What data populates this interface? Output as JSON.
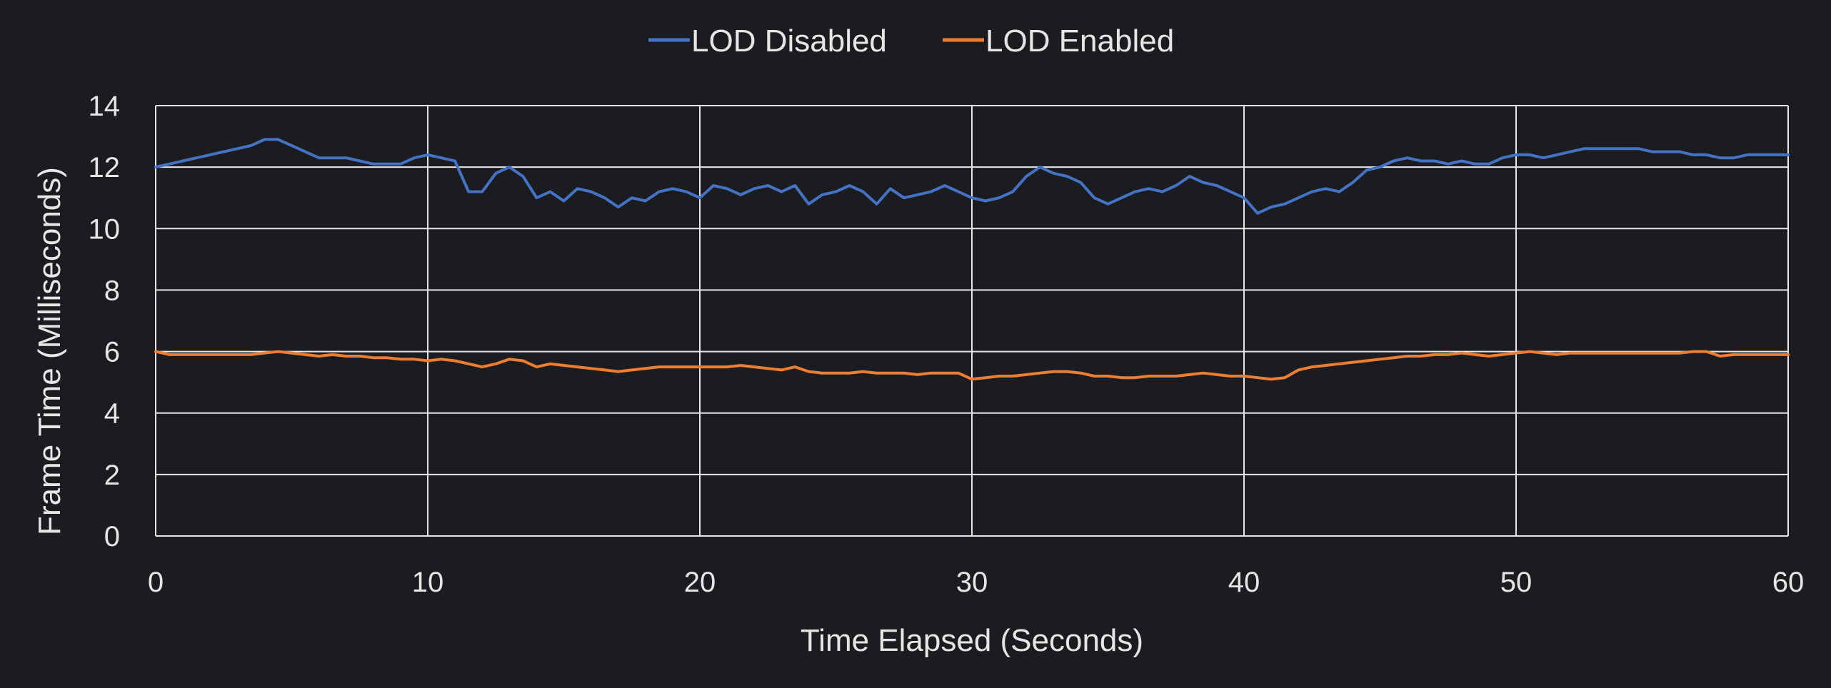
{
  "chart_data": {
    "type": "line",
    "title": "",
    "xlabel": "Time Elapsed (Seconds)",
    "ylabel": "Frame Time (Milliseconds)",
    "xlim": [
      0,
      60
    ],
    "ylim": [
      0,
      14
    ],
    "xticks": [
      0,
      10,
      20,
      30,
      40,
      50,
      60
    ],
    "yticks": [
      0,
      2,
      4,
      6,
      8,
      10,
      12,
      14
    ],
    "grid": true,
    "legend_position": "top-center",
    "background": "#1b1c20",
    "grid_color": "#e6e6e6",
    "series": [
      {
        "name": "LOD Disabled",
        "color": "#4472c4",
        "points": [
          [
            0,
            12.0
          ],
          [
            0.5,
            12.1
          ],
          [
            1,
            12.2
          ],
          [
            1.5,
            12.3
          ],
          [
            2,
            12.4
          ],
          [
            2.5,
            12.5
          ],
          [
            3,
            12.6
          ],
          [
            3.5,
            12.7
          ],
          [
            4,
            12.9
          ],
          [
            4.5,
            12.9
          ],
          [
            5,
            12.7
          ],
          [
            5.5,
            12.5
          ],
          [
            6,
            12.3
          ],
          [
            6.5,
            12.3
          ],
          [
            7,
            12.3
          ],
          [
            7.5,
            12.2
          ],
          [
            8,
            12.1
          ],
          [
            8.5,
            12.1
          ],
          [
            9,
            12.1
          ],
          [
            9.5,
            12.3
          ],
          [
            10,
            12.4
          ],
          [
            10.5,
            12.3
          ],
          [
            11,
            12.2
          ],
          [
            11.5,
            11.2
          ],
          [
            12,
            11.2
          ],
          [
            12.5,
            11.8
          ],
          [
            13,
            12.0
          ],
          [
            13.5,
            11.7
          ],
          [
            14,
            11.0
          ],
          [
            14.5,
            11.2
          ],
          [
            15,
            10.9
          ],
          [
            15.5,
            11.3
          ],
          [
            16,
            11.2
          ],
          [
            16.5,
            11.0
          ],
          [
            17,
            10.7
          ],
          [
            17.5,
            11.0
          ],
          [
            18,
            10.9
          ],
          [
            18.5,
            11.2
          ],
          [
            19,
            11.3
          ],
          [
            19.5,
            11.2
          ],
          [
            20,
            11.0
          ],
          [
            20.5,
            11.4
          ],
          [
            21,
            11.3
          ],
          [
            21.5,
            11.1
          ],
          [
            22,
            11.3
          ],
          [
            22.5,
            11.4
          ],
          [
            23,
            11.2
          ],
          [
            23.5,
            11.4
          ],
          [
            24,
            10.8
          ],
          [
            24.5,
            11.1
          ],
          [
            25,
            11.2
          ],
          [
            25.5,
            11.4
          ],
          [
            26,
            11.2
          ],
          [
            26.5,
            10.8
          ],
          [
            27,
            11.3
          ],
          [
            27.5,
            11.0
          ],
          [
            28,
            11.1
          ],
          [
            28.5,
            11.2
          ],
          [
            29,
            11.4
          ],
          [
            29.5,
            11.2
          ],
          [
            30,
            11.0
          ],
          [
            30.5,
            10.9
          ],
          [
            31,
            11.0
          ],
          [
            31.5,
            11.2
          ],
          [
            32,
            11.7
          ],
          [
            32.5,
            12.0
          ],
          [
            33,
            11.8
          ],
          [
            33.5,
            11.7
          ],
          [
            34,
            11.5
          ],
          [
            34.5,
            11.0
          ],
          [
            35,
            10.8
          ],
          [
            35.5,
            11.0
          ],
          [
            36,
            11.2
          ],
          [
            36.5,
            11.3
          ],
          [
            37,
            11.2
          ],
          [
            37.5,
            11.4
          ],
          [
            38,
            11.7
          ],
          [
            38.5,
            11.5
          ],
          [
            39,
            11.4
          ],
          [
            39.5,
            11.2
          ],
          [
            40,
            11.0
          ],
          [
            40.5,
            10.5
          ],
          [
            41,
            10.7
          ],
          [
            41.5,
            10.8
          ],
          [
            42,
            11.0
          ],
          [
            42.5,
            11.2
          ],
          [
            43,
            11.3
          ],
          [
            43.5,
            11.2
          ],
          [
            44,
            11.5
          ],
          [
            44.5,
            11.9
          ],
          [
            45,
            12.0
          ],
          [
            45.5,
            12.2
          ],
          [
            46,
            12.3
          ],
          [
            46.5,
            12.2
          ],
          [
            47,
            12.2
          ],
          [
            47.5,
            12.1
          ],
          [
            48,
            12.2
          ],
          [
            48.5,
            12.1
          ],
          [
            49,
            12.1
          ],
          [
            49.5,
            12.3
          ],
          [
            50,
            12.4
          ],
          [
            50.5,
            12.4
          ],
          [
            51,
            12.3
          ],
          [
            51.5,
            12.4
          ],
          [
            52,
            12.5
          ],
          [
            52.5,
            12.6
          ],
          [
            53,
            12.6
          ],
          [
            53.5,
            12.6
          ],
          [
            54,
            12.6
          ],
          [
            54.5,
            12.6
          ],
          [
            55,
            12.5
          ],
          [
            55.5,
            12.5
          ],
          [
            56,
            12.5
          ],
          [
            56.5,
            12.4
          ],
          [
            57,
            12.4
          ],
          [
            57.5,
            12.3
          ],
          [
            58,
            12.3
          ],
          [
            58.5,
            12.4
          ],
          [
            59,
            12.4
          ],
          [
            59.5,
            12.4
          ],
          [
            60,
            12.4
          ]
        ]
      },
      {
        "name": "LOD Enabled",
        "color": "#ed7d31",
        "points": [
          [
            0,
            6.0
          ],
          [
            0.5,
            5.9
          ],
          [
            1,
            5.9
          ],
          [
            1.5,
            5.9
          ],
          [
            2,
            5.9
          ],
          [
            2.5,
            5.9
          ],
          [
            3,
            5.9
          ],
          [
            3.5,
            5.9
          ],
          [
            4,
            5.95
          ],
          [
            4.5,
            6.0
          ],
          [
            5,
            5.95
          ],
          [
            5.5,
            5.9
          ],
          [
            6,
            5.85
          ],
          [
            6.5,
            5.9
          ],
          [
            7,
            5.85
          ],
          [
            7.5,
            5.85
          ],
          [
            8,
            5.8
          ],
          [
            8.5,
            5.8
          ],
          [
            9,
            5.75
          ],
          [
            9.5,
            5.75
          ],
          [
            10,
            5.7
          ],
          [
            10.5,
            5.75
          ],
          [
            11,
            5.7
          ],
          [
            11.5,
            5.6
          ],
          [
            12,
            5.5
          ],
          [
            12.5,
            5.6
          ],
          [
            13,
            5.75
          ],
          [
            13.5,
            5.7
          ],
          [
            14,
            5.5
          ],
          [
            14.5,
            5.6
          ],
          [
            15,
            5.55
          ],
          [
            15.5,
            5.5
          ],
          [
            16,
            5.45
          ],
          [
            16.5,
            5.4
          ],
          [
            17,
            5.35
          ],
          [
            17.5,
            5.4
          ],
          [
            18,
            5.45
          ],
          [
            18.5,
            5.5
          ],
          [
            19,
            5.5
          ],
          [
            19.5,
            5.5
          ],
          [
            20,
            5.5
          ],
          [
            20.5,
            5.5
          ],
          [
            21,
            5.5
          ],
          [
            21.5,
            5.55
          ],
          [
            22,
            5.5
          ],
          [
            22.5,
            5.45
          ],
          [
            23,
            5.4
          ],
          [
            23.5,
            5.5
          ],
          [
            24,
            5.35
          ],
          [
            24.5,
            5.3
          ],
          [
            25,
            5.3
          ],
          [
            25.5,
            5.3
          ],
          [
            26,
            5.35
          ],
          [
            26.5,
            5.3
          ],
          [
            27,
            5.3
          ],
          [
            27.5,
            5.3
          ],
          [
            28,
            5.25
          ],
          [
            28.5,
            5.3
          ],
          [
            29,
            5.3
          ],
          [
            29.5,
            5.3
          ],
          [
            30,
            5.1
          ],
          [
            30.5,
            5.15
          ],
          [
            31,
            5.2
          ],
          [
            31.5,
            5.2
          ],
          [
            32,
            5.25
          ],
          [
            32.5,
            5.3
          ],
          [
            33,
            5.35
          ],
          [
            33.5,
            5.35
          ],
          [
            34,
            5.3
          ],
          [
            34.5,
            5.2
          ],
          [
            35,
            5.2
          ],
          [
            35.5,
            5.15
          ],
          [
            36,
            5.15
          ],
          [
            36.5,
            5.2
          ],
          [
            37,
            5.2
          ],
          [
            37.5,
            5.2
          ],
          [
            38,
            5.25
          ],
          [
            38.5,
            5.3
          ],
          [
            39,
            5.25
          ],
          [
            39.5,
            5.2
          ],
          [
            40,
            5.2
          ],
          [
            40.5,
            5.15
          ],
          [
            41,
            5.1
          ],
          [
            41.5,
            5.15
          ],
          [
            42,
            5.4
          ],
          [
            42.5,
            5.5
          ],
          [
            43,
            5.55
          ],
          [
            43.5,
            5.6
          ],
          [
            44,
            5.65
          ],
          [
            44.5,
            5.7
          ],
          [
            45,
            5.75
          ],
          [
            45.5,
            5.8
          ],
          [
            46,
            5.85
          ],
          [
            46.5,
            5.85
          ],
          [
            47,
            5.9
          ],
          [
            47.5,
            5.9
          ],
          [
            48,
            5.95
          ],
          [
            48.5,
            5.9
          ],
          [
            49,
            5.85
          ],
          [
            49.5,
            5.9
          ],
          [
            50,
            5.95
          ],
          [
            50.5,
            6.0
          ],
          [
            51,
            5.95
          ],
          [
            51.5,
            5.9
          ],
          [
            52,
            5.95
          ],
          [
            52.5,
            5.95
          ],
          [
            53,
            5.95
          ],
          [
            53.5,
            5.95
          ],
          [
            54,
            5.95
          ],
          [
            54.5,
            5.95
          ],
          [
            55,
            5.95
          ],
          [
            55.5,
            5.95
          ],
          [
            56,
            5.95
          ],
          [
            56.5,
            6.0
          ],
          [
            57,
            6.0
          ],
          [
            57.5,
            5.85
          ],
          [
            58,
            5.9
          ],
          [
            58.5,
            5.9
          ],
          [
            59,
            5.9
          ],
          [
            59.5,
            5.9
          ],
          [
            60,
            5.9
          ]
        ]
      }
    ]
  }
}
